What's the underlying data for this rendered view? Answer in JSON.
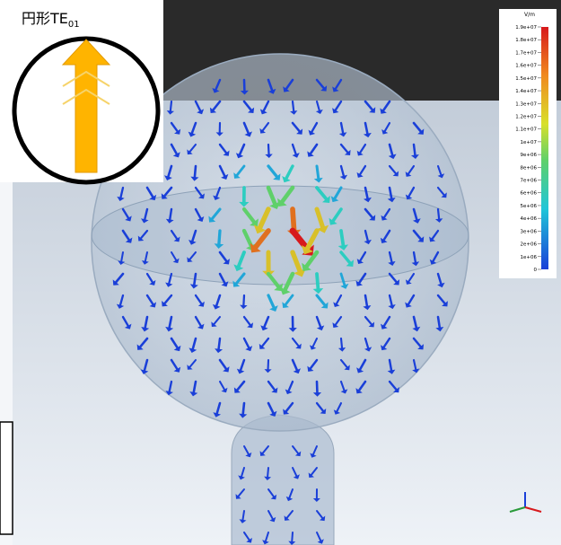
{
  "inset": {
    "label": "円形TE",
    "label_subscript": "01"
  },
  "colorbar": {
    "unit": "V/m",
    "ticks": [
      "1.9e+07",
      "1.8e+07",
      "1.7e+07",
      "1.6e+07",
      "1.5e+07",
      "1.4e+07",
      "1.3e+07",
      "1.2e+07",
      "1.1e+07",
      "1e+07",
      "9e+06",
      "8e+06",
      "7e+06",
      "6e+06",
      "5e+06",
      "4e+06",
      "3e+06",
      "2e+06",
      "1e+06",
      "0"
    ]
  }
}
